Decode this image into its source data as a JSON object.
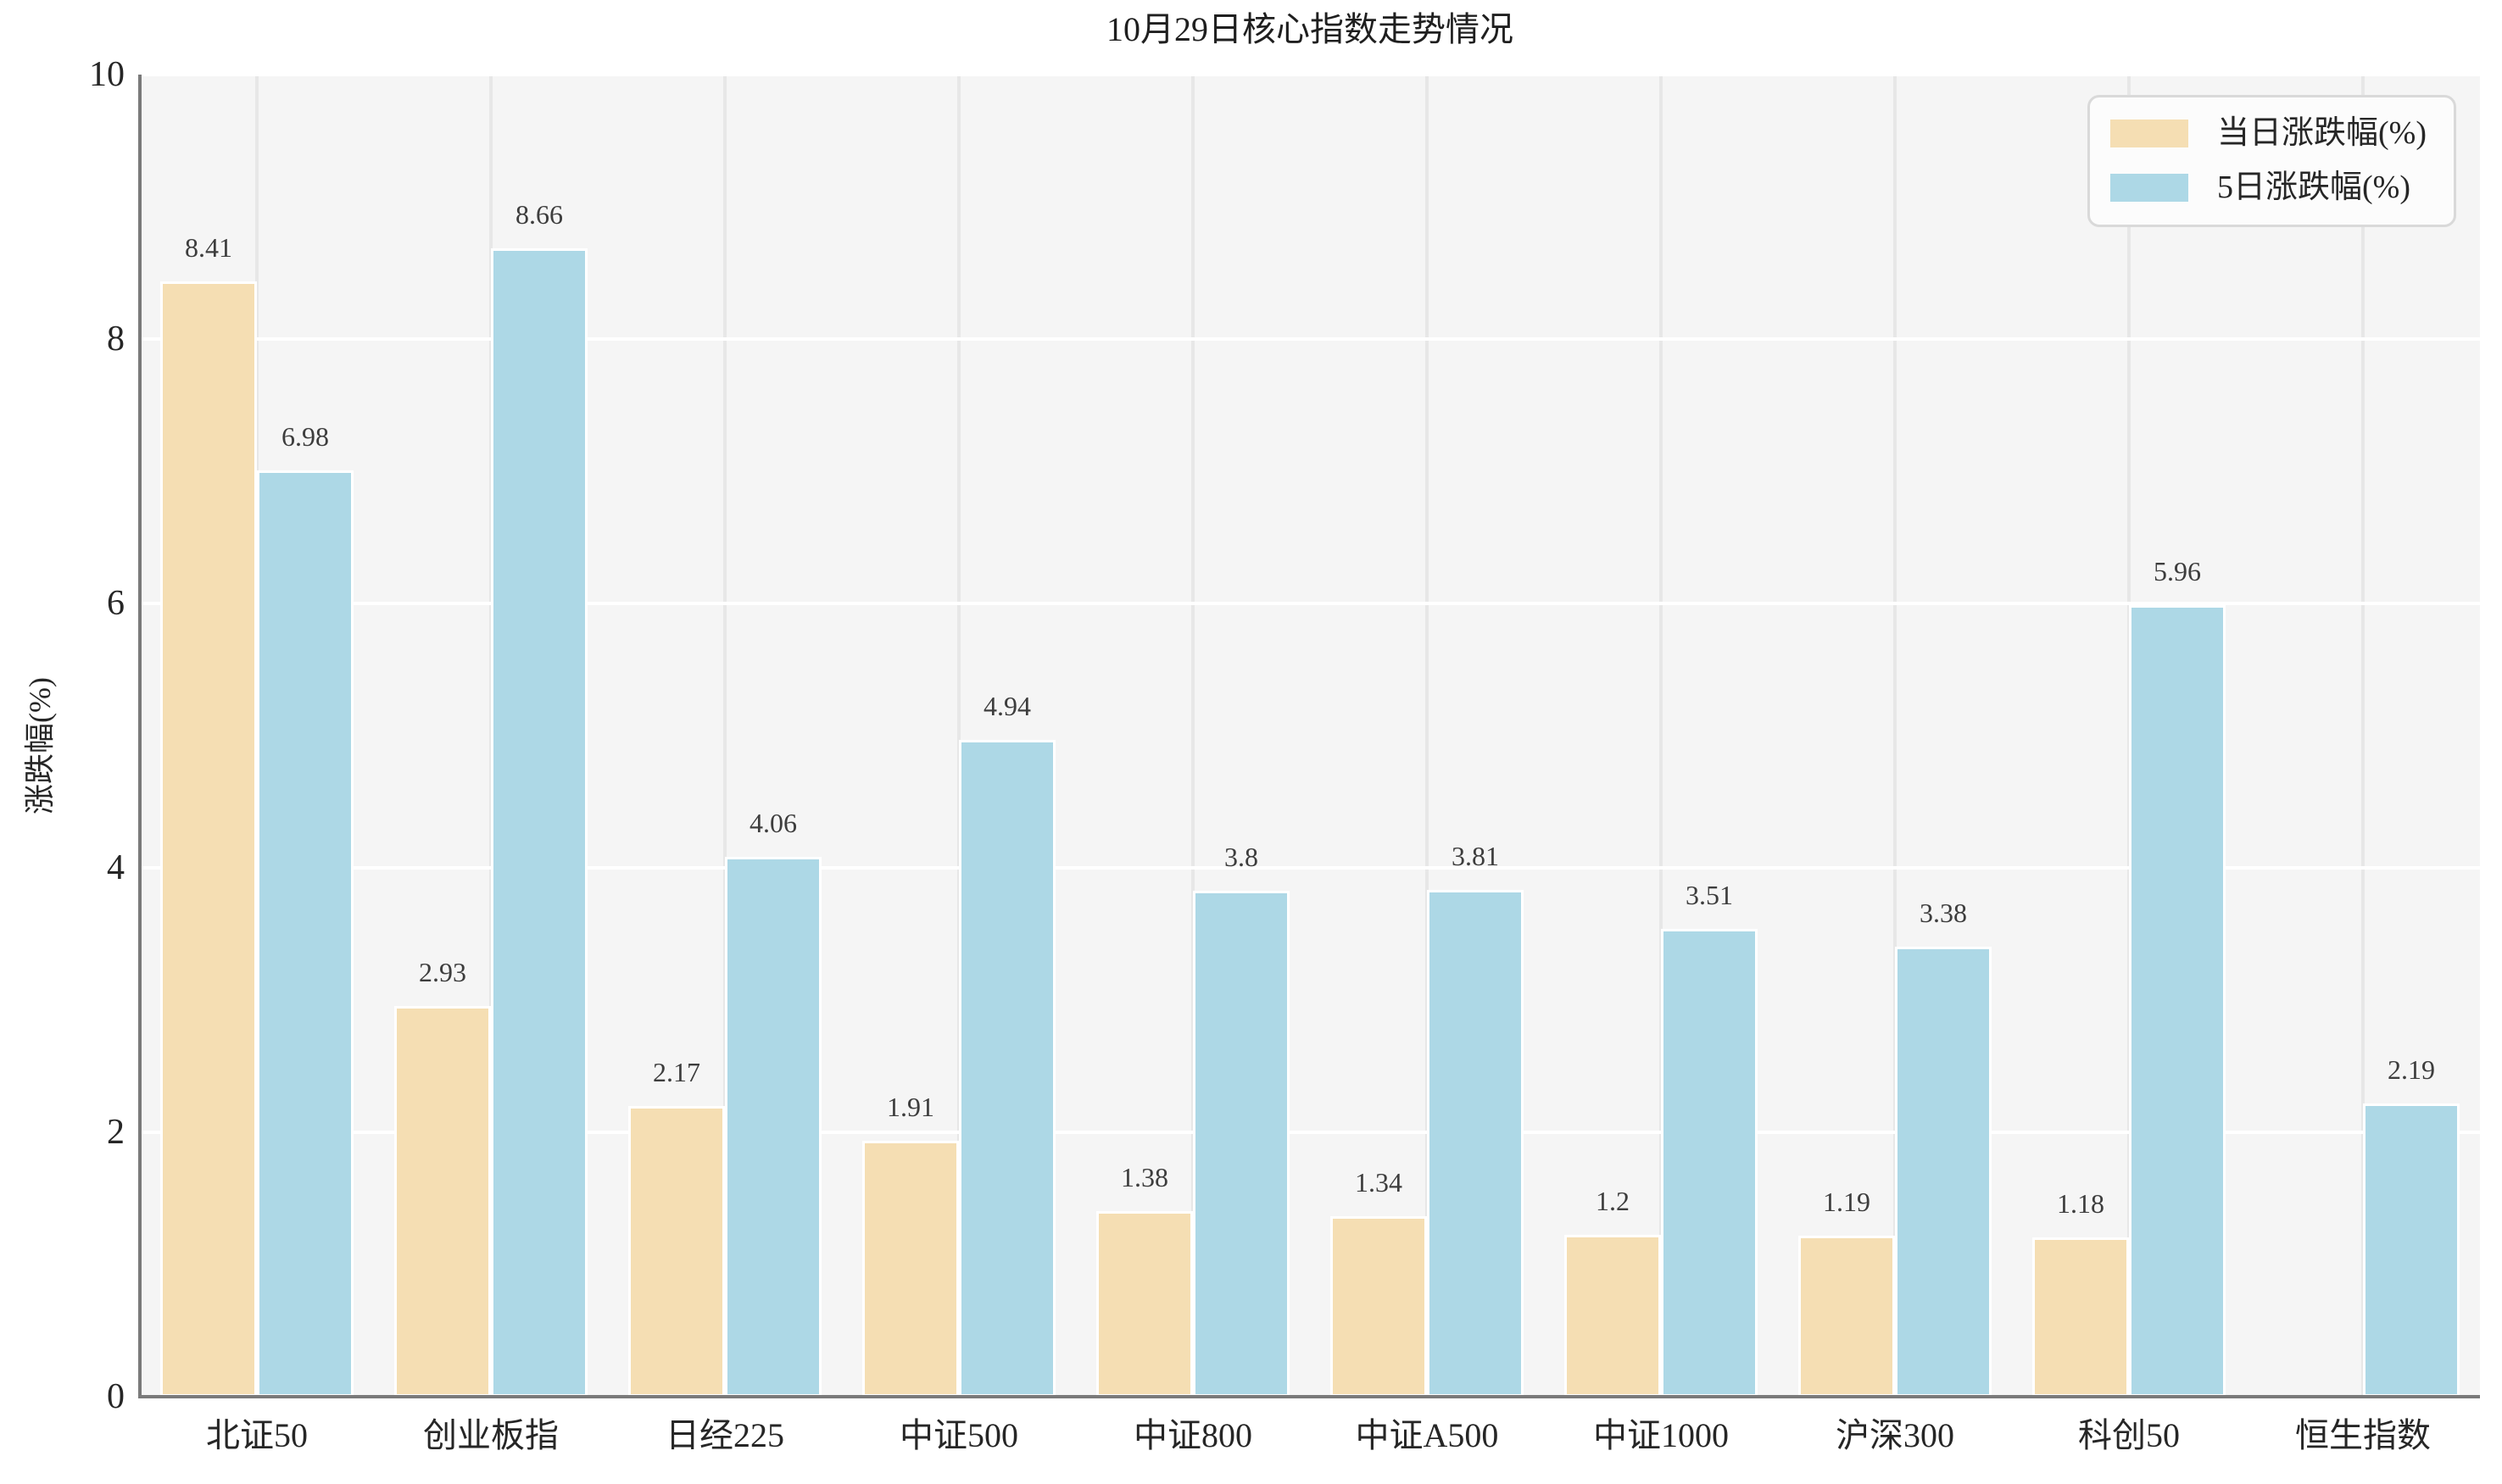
{
  "chart_data": {
    "type": "bar",
    "title": "10月29日核心指数走势情况",
    "ylabel": "涨跌幅(%)",
    "xlabel": "",
    "categories": [
      "北证50",
      "创业板指",
      "日经225",
      "中证500",
      "中证800",
      "中证A500",
      "中证1000",
      "沪深300",
      "科创50",
      "恒生指数"
    ],
    "series": [
      {
        "name": "当日涨跌幅(%)",
        "color": "#F5DEB3",
        "values": [
          8.41,
          2.93,
          2.17,
          1.91,
          1.38,
          1.34,
          1.2,
          1.19,
          1.18,
          null
        ]
      },
      {
        "name": "5日涨跌幅(%)",
        "color": "#ADD8E6",
        "values": [
          6.98,
          8.66,
          4.06,
          4.94,
          3.8,
          3.81,
          3.51,
          3.38,
          5.96,
          2.19
        ]
      }
    ],
    "ylim": [
      0,
      10
    ],
    "yticks": [
      0,
      2,
      4,
      6,
      8,
      10
    ],
    "grid": {
      "horizontal": true,
      "vertical": true
    },
    "legend_position": "upper right",
    "bar_value_labels_shown": true
  },
  "colors": {
    "plot_background": "#f5f5f5",
    "figure_background": "#ffffff",
    "horizontal_grid": "#ffffff",
    "vertical_grid": "#e7e7e7",
    "spine": "#7a7a7a",
    "bar_edge": "#ffffff",
    "text": "#262626",
    "legend_border": "#d9d9d9",
    "legend_background": "#fcfcfc"
  }
}
